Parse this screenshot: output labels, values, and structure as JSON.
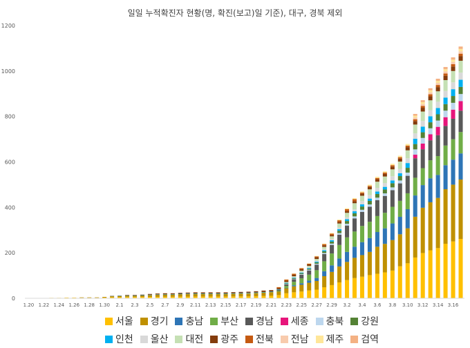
{
  "chart_data": {
    "type": "bar",
    "stacked": true,
    "title": "일일 누적확진자 현황(명, 확진(보고)일 기준), 대구, 경북 제외",
    "xlabel": "",
    "ylabel": "",
    "ylim": [
      0,
      1200
    ],
    "yticks": [
      0,
      200,
      400,
      600,
      800,
      1000,
      1200
    ],
    "grid": false,
    "legend_position": "bottom",
    "categories": [
      "1.20",
      "1.21",
      "1.22",
      "1.23",
      "1.24",
      "1.25",
      "1.26",
      "1.27",
      "1.28",
      "1.29",
      "1.30",
      "1.31",
      "2.1",
      "2.2",
      "2.3",
      "2.4",
      "2.5",
      "2.6",
      "2.7",
      "2.8",
      "2.9",
      "2.10",
      "2.11",
      "2.12",
      "2.13",
      "2.14",
      "2.15",
      "2.16",
      "2.17",
      "2.18",
      "2.19",
      "2.20",
      "2.21",
      "2.22",
      "2.23",
      "2.24",
      "2.25",
      "2.26",
      "2.27",
      "2.28",
      "2.29",
      "3.1",
      "3.2",
      "3.3",
      "3.4",
      "3.5",
      "3.6",
      "3.7",
      "3.8",
      "3.9",
      "3.10",
      "3.11",
      "3.12",
      "3.13",
      "3.14",
      "3.15",
      "3.16",
      "3.17"
    ],
    "xtick_labels": [
      "1.20",
      "1.22",
      "1.24",
      "1.26",
      "1.28",
      "1.30",
      "2.1",
      "2.3",
      "2.5",
      "2.7",
      "2.9",
      "2.11",
      "2.13",
      "2.15",
      "2.17",
      "2.19",
      "2.21",
      "2.23",
      "2.25",
      "2.27",
      "2.29",
      "3.2",
      "3.4",
      "3.6",
      "3.8",
      "3.10",
      "3.12",
      "3.14",
      "3.16"
    ],
    "totals": [
      1,
      1,
      1,
      2,
      2,
      3,
      3,
      4,
      4,
      4,
      6,
      11,
      12,
      15,
      15,
      16,
      19,
      21,
      22,
      22,
      24,
      25,
      26,
      26,
      26,
      26,
      26,
      27,
      28,
      29,
      31,
      34,
      36,
      50,
      85,
      110,
      135,
      155,
      190,
      243,
      290,
      350,
      400,
      445,
      475,
      510,
      540,
      570,
      610,
      640,
      700,
      780,
      830,
      880,
      920,
      960,
      1000,
      1045
    ],
    "series": [
      {
        "name": "서울",
        "color": "#FFC000",
        "shares": [
          1.0,
          1.0,
          1.0,
          1.0,
          1.0,
          1.0,
          1.0,
          0.5,
          0.5,
          0.5,
          0.5,
          0.4,
          0.4,
          0.35,
          0.35,
          0.35,
          0.32,
          0.3,
          0.3,
          0.3,
          0.3,
          0.3,
          0.3,
          0.3,
          0.3,
          0.3,
          0.3,
          0.3,
          0.3,
          0.3,
          0.3,
          0.3,
          0.3,
          0.28,
          0.26,
          0.24,
          0.22,
          0.22,
          0.2,
          0.2,
          0.2,
          0.2,
          0.2,
          0.2,
          0.2,
          0.2,
          0.2,
          0.2,
          0.2,
          0.22,
          0.22,
          0.23,
          0.24,
          0.24,
          0.24,
          0.25,
          0.25,
          0.25
        ]
      },
      {
        "name": "경기",
        "color": "#BF9000",
        "shares": [
          0,
          0,
          0,
          0,
          0,
          0,
          0,
          0.5,
          0.5,
          0.5,
          0.5,
          0.4,
          0.4,
          0.4,
          0.4,
          0.4,
          0.42,
          0.45,
          0.45,
          0.45,
          0.45,
          0.45,
          0.45,
          0.45,
          0.45,
          0.45,
          0.45,
          0.45,
          0.45,
          0.45,
          0.45,
          0.45,
          0.45,
          0.3,
          0.26,
          0.24,
          0.22,
          0.22,
          0.2,
          0.2,
          0.2,
          0.2,
          0.2,
          0.2,
          0.2,
          0.2,
          0.22,
          0.22,
          0.22,
          0.22,
          0.22,
          0.23,
          0.24,
          0.24,
          0.24,
          0.25,
          0.25,
          0.25
        ]
      },
      {
        "name": "충남",
        "color": "#2E75B6",
        "shares": [
          0,
          0,
          0,
          0,
          0,
          0,
          0,
          0,
          0,
          0,
          0,
          0,
          0,
          0,
          0,
          0,
          0,
          0,
          0,
          0,
          0,
          0,
          0,
          0,
          0,
          0,
          0,
          0,
          0,
          0,
          0,
          0,
          0,
          0,
          0.02,
          0.04,
          0.05,
          0.06,
          0.07,
          0.09,
          0.1,
          0.1,
          0.11,
          0.11,
          0.12,
          0.12,
          0.12,
          0.12,
          0.12,
          0.12,
          0.12,
          0.12,
          0.12,
          0.12,
          0.11,
          0.11,
          0.11,
          0.11
        ]
      },
      {
        "name": "부산",
        "color": "#70AD47",
        "shares": [
          0,
          0,
          0,
          0,
          0,
          0,
          0,
          0,
          0,
          0,
          0,
          0,
          0,
          0,
          0,
          0,
          0,
          0,
          0,
          0,
          0,
          0,
          0,
          0,
          0,
          0,
          0,
          0,
          0,
          0,
          0,
          0,
          0,
          0.06,
          0.1,
          0.14,
          0.16,
          0.17,
          0.18,
          0.18,
          0.18,
          0.17,
          0.16,
          0.15,
          0.15,
          0.14,
          0.13,
          0.12,
          0.12,
          0.11,
          0.1,
          0.1,
          0.09,
          0.09,
          0.09,
          0.09,
          0.09,
          0.09
        ]
      },
      {
        "name": "경남",
        "color": "#595959",
        "shares": [
          0,
          0,
          0,
          0,
          0,
          0,
          0,
          0,
          0,
          0,
          0,
          0,
          0,
          0,
          0,
          0,
          0,
          0,
          0,
          0,
          0,
          0,
          0,
          0,
          0,
          0,
          0,
          0,
          0,
          0,
          0,
          0,
          0,
          0.06,
          0.08,
          0.1,
          0.12,
          0.12,
          0.13,
          0.13,
          0.13,
          0.13,
          0.13,
          0.13,
          0.13,
          0.13,
          0.13,
          0.13,
          0.12,
          0.12,
          0.11,
          0.11,
          0.1,
          0.1,
          0.1,
          0.09,
          0.09,
          0.09
        ]
      },
      {
        "name": "세종",
        "color": "#E7157B",
        "shares": [
          0,
          0,
          0,
          0,
          0,
          0,
          0,
          0,
          0,
          0,
          0,
          0,
          0,
          0,
          0,
          0,
          0,
          0,
          0,
          0,
          0,
          0,
          0,
          0,
          0,
          0,
          0,
          0,
          0,
          0,
          0,
          0,
          0,
          0,
          0,
          0,
          0,
          0,
          0,
          0,
          0,
          0,
          0,
          0,
          0,
          0,
          0,
          0,
          0,
          0,
          0,
          0.02,
          0.03,
          0.03,
          0.04,
          0.04,
          0.04,
          0.04
        ]
      },
      {
        "name": "충북",
        "color": "#BDD7EE",
        "shares": [
          0,
          0,
          0,
          0,
          0,
          0,
          0,
          0,
          0,
          0,
          0,
          0,
          0,
          0,
          0,
          0,
          0,
          0,
          0,
          0,
          0,
          0,
          0,
          0,
          0,
          0,
          0,
          0,
          0,
          0,
          0,
          0,
          0,
          0,
          0.02,
          0.02,
          0.02,
          0.02,
          0.02,
          0.02,
          0.02,
          0.02,
          0.02,
          0.02,
          0.02,
          0.02,
          0.02,
          0.02,
          0.02,
          0.02,
          0.02,
          0.03,
          0.03,
          0.03,
          0.03,
          0.03,
          0.03,
          0.03
        ]
      },
      {
        "name": "강원",
        "color": "#548235",
        "shares": [
          0,
          0,
          0,
          0,
          0,
          0,
          0,
          0,
          0,
          0,
          0,
          0,
          0,
          0,
          0,
          0,
          0,
          0,
          0,
          0,
          0,
          0,
          0,
          0,
          0,
          0,
          0,
          0,
          0,
          0,
          0,
          0,
          0,
          0.04,
          0.03,
          0.03,
          0.03,
          0.03,
          0.03,
          0.03,
          0.03,
          0.03,
          0.03,
          0.03,
          0.03,
          0.03,
          0.03,
          0.03,
          0.03,
          0.03,
          0.03,
          0.03,
          0.03,
          0.03,
          0.03,
          0.03,
          0.03,
          0.03
        ]
      },
      {
        "name": "인천",
        "color": "#00B0F0",
        "shares": [
          0,
          0,
          0,
          0,
          0,
          0,
          0,
          0,
          0,
          0,
          0,
          0.1,
          0.1,
          0.1,
          0.1,
          0.1,
          0.08,
          0.07,
          0.07,
          0.07,
          0.07,
          0.07,
          0.07,
          0.07,
          0.07,
          0.07,
          0.07,
          0.07,
          0.07,
          0.07,
          0.07,
          0.06,
          0.06,
          0.04,
          0.03,
          0.02,
          0.02,
          0.02,
          0.02,
          0.02,
          0.02,
          0.02,
          0.02,
          0.02,
          0.02,
          0.02,
          0.02,
          0.02,
          0.02,
          0.02,
          0.03,
          0.03,
          0.03,
          0.03,
          0.03,
          0.03,
          0.03,
          0.03
        ]
      },
      {
        "name": "울산",
        "color": "#D9D9D9",
        "shares": [
          0,
          0,
          0,
          0,
          0,
          0,
          0,
          0,
          0,
          0,
          0,
          0,
          0,
          0,
          0,
          0,
          0,
          0,
          0,
          0,
          0,
          0,
          0,
          0,
          0,
          0,
          0,
          0,
          0,
          0,
          0,
          0,
          0,
          0,
          0.02,
          0.02,
          0.02,
          0.02,
          0.02,
          0.02,
          0.02,
          0.02,
          0.02,
          0.02,
          0.03,
          0.03,
          0.03,
          0.03,
          0.03,
          0.03,
          0.03,
          0.03,
          0.03,
          0.03,
          0.03,
          0.03,
          0.03,
          0.03
        ]
      },
      {
        "name": "대전",
        "color": "#C5E0B4",
        "shares": [
          0,
          0,
          0,
          0,
          0,
          0,
          0,
          0,
          0,
          0,
          0,
          0,
          0,
          0,
          0,
          0,
          0,
          0,
          0,
          0,
          0,
          0,
          0,
          0,
          0,
          0,
          0,
          0,
          0,
          0,
          0,
          0,
          0,
          0,
          0.02,
          0.03,
          0.04,
          0.04,
          0.04,
          0.04,
          0.04,
          0.05,
          0.05,
          0.06,
          0.05,
          0.05,
          0.05,
          0.05,
          0.05,
          0.05,
          0.05,
          0.05,
          0.05,
          0.05,
          0.05,
          0.05,
          0.05,
          0.05
        ]
      },
      {
        "name": "광주",
        "color": "#843C0C",
        "shares": [
          0,
          0,
          0,
          0,
          0,
          0,
          0,
          0,
          0,
          0,
          0,
          0.1,
          0.1,
          0.15,
          0.15,
          0.15,
          0.18,
          0.18,
          0.18,
          0.18,
          0.18,
          0.18,
          0.18,
          0.18,
          0.18,
          0.18,
          0.18,
          0.18,
          0.18,
          0.18,
          0.18,
          0.19,
          0.19,
          0.12,
          0.07,
          0.06,
          0.05,
          0.04,
          0.04,
          0.03,
          0.02,
          0.02,
          0.02,
          0.02,
          0.02,
          0.02,
          0.02,
          0.02,
          0.02,
          0.02,
          0.02,
          0.02,
          0.02,
          0.02,
          0.02,
          0.02,
          0.02,
          0.02
        ]
      },
      {
        "name": "전북",
        "color": "#C55A11",
        "shares": [
          0,
          0,
          0,
          0,
          0,
          0,
          0,
          0,
          0,
          0,
          0,
          0,
          0,
          0,
          0,
          0,
          0,
          0,
          0,
          0,
          0,
          0,
          0,
          0,
          0,
          0,
          0,
          0,
          0,
          0,
          0,
          0,
          0,
          0.08,
          0.06,
          0.04,
          0.03,
          0.02,
          0.02,
          0.02,
          0.02,
          0.02,
          0.02,
          0.02,
          0.01,
          0.01,
          0.01,
          0.01,
          0.01,
          0.01,
          0.01,
          0.01,
          0.01,
          0.01,
          0.01,
          0.01,
          0.01,
          0.01
        ]
      },
      {
        "name": "전남",
        "color": "#F8CBAD",
        "shares": [
          0,
          0,
          0,
          0,
          0,
          0,
          0,
          0,
          0,
          0,
          0,
          0,
          0,
          0,
          0,
          0,
          0,
          0,
          0,
          0,
          0,
          0,
          0,
          0,
          0,
          0,
          0,
          0,
          0,
          0,
          0,
          0,
          0,
          0,
          0,
          0,
          0,
          0,
          0,
          0,
          0,
          0,
          0,
          0,
          0,
          0,
          0,
          0,
          0,
          0,
          0,
          0.01,
          0.01,
          0.01,
          0.01,
          0.01,
          0.01,
          0.01
        ]
      },
      {
        "name": "제주",
        "color": "#FFE699",
        "shares": [
          0,
          0,
          0,
          0,
          0,
          0,
          0,
          0,
          0,
          0,
          0,
          0,
          0,
          0,
          0,
          0,
          0,
          0,
          0,
          0,
          0,
          0,
          0,
          0,
          0,
          0,
          0,
          0,
          0,
          0,
          0,
          0,
          0,
          0.02,
          0.01,
          0.01,
          0.01,
          0.01,
          0.01,
          0.01,
          0.01,
          0.01,
          0.01,
          0.01,
          0.01,
          0.01,
          0.01,
          0.01,
          0.01,
          0.01,
          0.01,
          0.01,
          0.01,
          0.01,
          0.01,
          0.01,
          0.01,
          0.01
        ]
      },
      {
        "name": "검역",
        "color": "#F4B183",
        "shares": [
          0,
          0,
          0,
          0,
          0,
          0,
          0,
          0,
          0,
          0,
          0,
          0,
          0,
          0,
          0,
          0,
          0,
          0,
          0,
          0,
          0,
          0,
          0,
          0,
          0,
          0,
          0,
          0,
          0,
          0,
          0,
          0,
          0,
          0,
          0,
          0,
          0,
          0,
          0,
          0,
          0,
          0,
          0,
          0,
          0,
          0,
          0,
          0,
          0,
          0,
          0,
          0.01,
          0.01,
          0.01,
          0.01,
          0.01,
          0.01,
          0.01
        ]
      }
    ]
  }
}
